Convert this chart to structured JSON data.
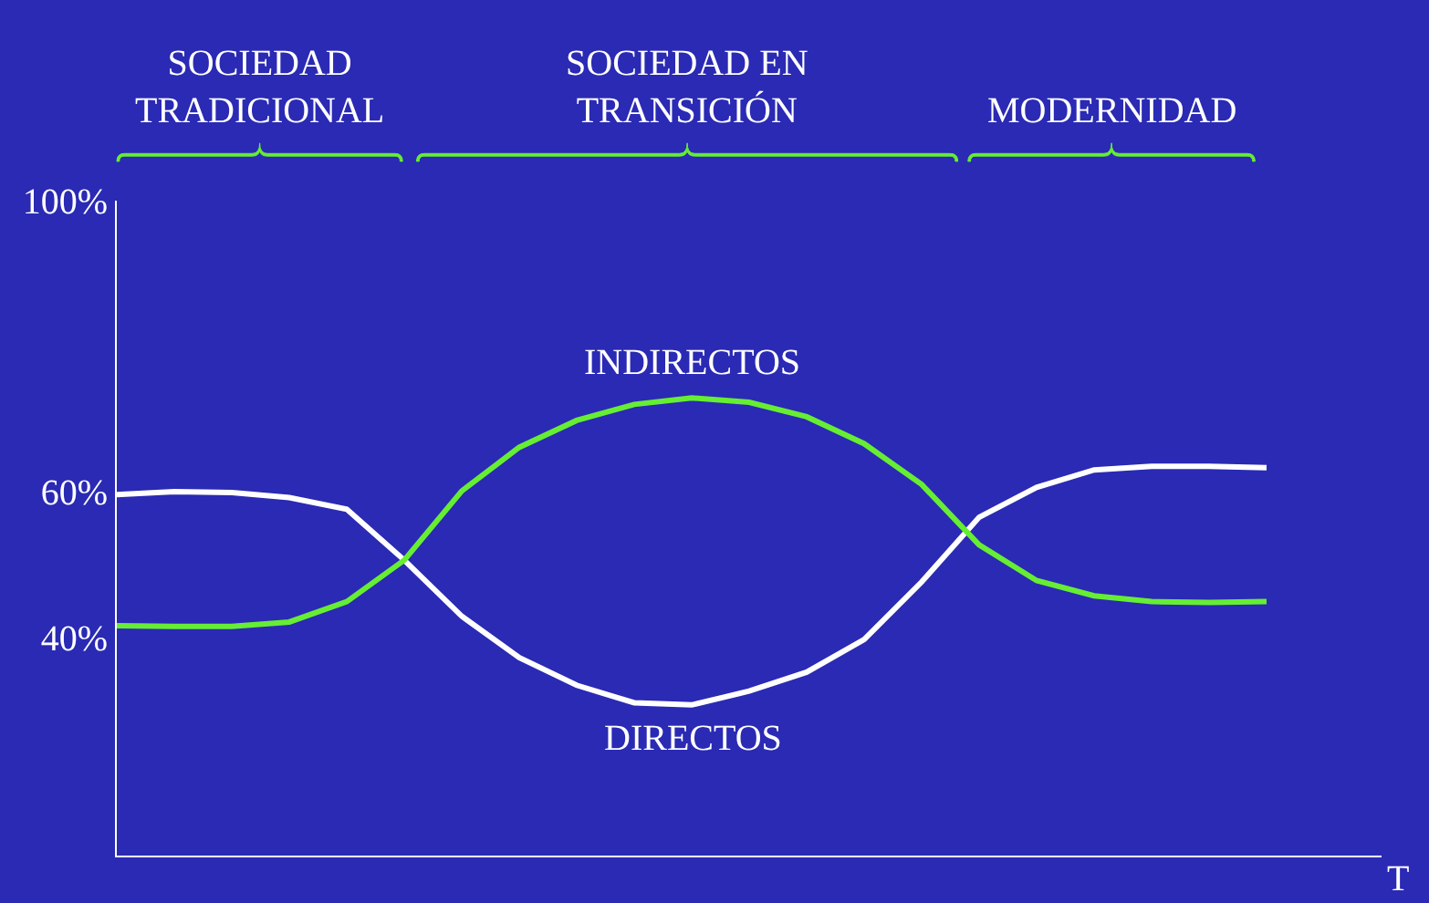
{
  "chart_data": {
    "type": "line",
    "xlabel": "T",
    "categories": [
      null,
      null,
      null,
      null,
      null,
      null,
      null,
      null,
      null,
      null,
      null,
      null,
      null,
      null,
      null,
      null,
      null,
      null,
      null,
      null,
      null,
      null,
      null
    ],
    "ylim": [
      10,
      100
    ],
    "yticks": [
      {
        "value": 40,
        "label": "40%"
      },
      {
        "value": 60,
        "label": "60%"
      },
      {
        "value": 100,
        "label": "100%"
      }
    ],
    "tick_labels": "y",
    "grid": false,
    "legend": false,
    "marker": "none",
    "line_style": "solid",
    "series": [
      {
        "name": "DIRECTOS",
        "color": "#ffffff",
        "values": [
          59.6,
          60.0,
          59.9,
          59.2,
          57.6,
          50.6,
          42.9,
          37.2,
          33.4,
          31.0,
          30.7,
          32.6,
          35.2,
          39.7,
          47.6,
          56.5,
          60.6,
          63.0,
          63.5,
          63.5,
          63.3,
          null,
          null
        ]
      },
      {
        "name": "INDIRECTOS",
        "color": "#66ee33",
        "values": [
          41.6,
          41.5,
          41.5,
          42.1,
          44.9,
          50.6,
          60.1,
          66.1,
          69.8,
          72.0,
          72.9,
          72.3,
          70.3,
          66.6,
          61.0,
          52.7,
          47.8,
          45.7,
          44.9,
          44.8,
          44.9,
          null,
          null
        ]
      }
    ],
    "annotations": [
      "SOCIEDAD\nTRADICIONAL",
      "SOCIEDAD EN\nTRANSICIÓN",
      "MODERNIDAD"
    ]
  }
}
